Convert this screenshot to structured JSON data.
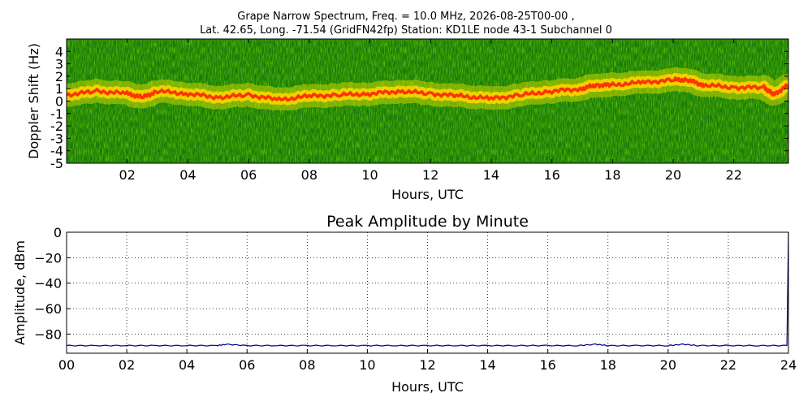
{
  "figure": {
    "title_line1": "Grape Narrow Spectrum, Freq. = 10.0 MHz, 2026-08-25T00-00 ,",
    "title_line2": "Lat.  42.65, Long. -71.54 (GridFN42fp) Station: KD1LE node 43-1 Subchannel 0"
  },
  "chart_data": [
    {
      "type": "heatmap",
      "title": "",
      "xlabel": "Hours, UTC",
      "ylabel": "Doppler Shift (Hz)",
      "xlim": [
        0,
        23.8
      ],
      "ylim": [
        -5,
        5
      ],
      "x_ticks": [
        2,
        4,
        6,
        8,
        10,
        12,
        14,
        16,
        18,
        20,
        22
      ],
      "x_tick_labels": [
        "02",
        "04",
        "06",
        "08",
        "10",
        "12",
        "14",
        "16",
        "18",
        "20",
        "22"
      ],
      "y_ticks": [
        4,
        3,
        2,
        1,
        0,
        -1,
        -2,
        -3,
        -4,
        -5
      ],
      "y_tick_labels": [
        "4",
        "3",
        "2",
        "1",
        "0",
        "-1",
        "-2",
        "-3",
        "-4",
        "-5"
      ],
      "colors": {
        "background": "#0a7a0a",
        "mid": "#c8d400",
        "peak": "#ff3300"
      },
      "doppler_trace": {
        "x": [
          0,
          1,
          2,
          2.5,
          3,
          4,
          5,
          6,
          7,
          8,
          9,
          10,
          11,
          12,
          13,
          14,
          15,
          16,
          17,
          17.5,
          18,
          19,
          20,
          20.5,
          21,
          22,
          23,
          23.3,
          23.8
        ],
        "y": [
          0.5,
          0.8,
          0.6,
          0.3,
          0.8,
          0.6,
          0.3,
          0.5,
          0.1,
          0.4,
          0.5,
          0.6,
          0.8,
          0.6,
          0.4,
          0.2,
          0.5,
          0.8,
          1.0,
          1.3,
          1.3,
          1.5,
          1.7,
          1.7,
          1.3,
          1.1,
          1.1,
          0.5,
          1.3
        ]
      }
    },
    {
      "type": "line",
      "title": "Peak Amplitude by Minute",
      "xlabel": "Hours, UTC",
      "ylabel": "Amplitude, dBm",
      "xlim": [
        0,
        24
      ],
      "ylim": [
        -95,
        0
      ],
      "grid": true,
      "x_ticks": [
        0,
        2,
        4,
        6,
        8,
        10,
        12,
        14,
        16,
        18,
        20,
        22,
        24
      ],
      "x_tick_labels": [
        "00",
        "02",
        "04",
        "06",
        "08",
        "10",
        "12",
        "14",
        "16",
        "18",
        "20",
        "22",
        "24"
      ],
      "y_ticks": [
        0,
        -20,
        -40,
        -60,
        -80
      ],
      "y_tick_labels": [
        "0",
        "−20",
        "−40",
        "−60",
        "−80"
      ],
      "line_color": "#00008b",
      "series": [
        {
          "x": [
            0,
            1,
            2,
            3,
            4,
            5,
            5.3,
            6,
            7,
            8,
            9,
            10,
            11,
            12,
            13,
            14,
            15,
            16,
            17,
            17.6,
            18,
            19,
            20,
            20.5,
            21,
            22,
            23,
            23.95,
            24
          ],
          "y": [
            -89,
            -89,
            -89,
            -89,
            -89,
            -89,
            -88,
            -89,
            -89,
            -89,
            -89,
            -89,
            -89,
            -89,
            -89,
            -89,
            -89,
            -89,
            -89,
            -88,
            -89,
            -89,
            -89,
            -88,
            -89,
            -89,
            -89,
            -89,
            0
          ]
        }
      ]
    }
  ]
}
